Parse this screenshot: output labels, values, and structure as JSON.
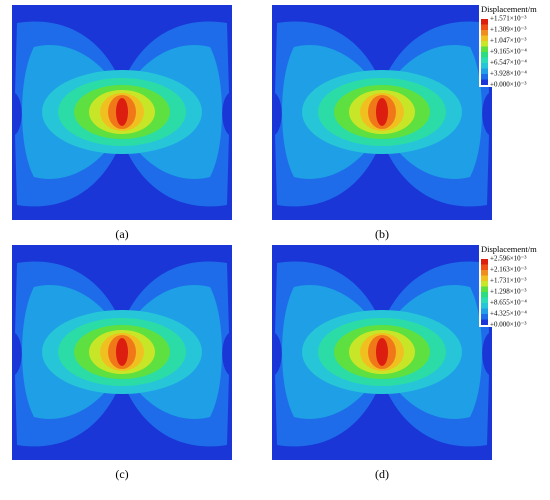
{
  "panels": [
    {
      "label": "(a)"
    },
    {
      "label": "(b)"
    },
    {
      "label": "(c)"
    },
    {
      "label": "(d)"
    }
  ],
  "legends": [
    {
      "title": "Displacement/m",
      "labels": [
        "+1.571×10⁻³",
        "+1.309×10⁻³",
        "+1.047×10⁻³",
        "+9.165×10⁻⁴",
        "+6.547×10⁻⁴",
        "+3.928×10⁻⁴",
        "+0.000×10⁻³"
      ]
    },
    {
      "title": "Displacement/m",
      "labels": [
        "+2.596×10⁻³",
        "+2.163×10⁻³",
        "+1.731×10⁻³",
        "+1.298×10⁻³",
        "+8.655×10⁻⁴",
        "+4.325×10⁻⁴",
        "+0.000×10⁻³"
      ]
    }
  ]
}
